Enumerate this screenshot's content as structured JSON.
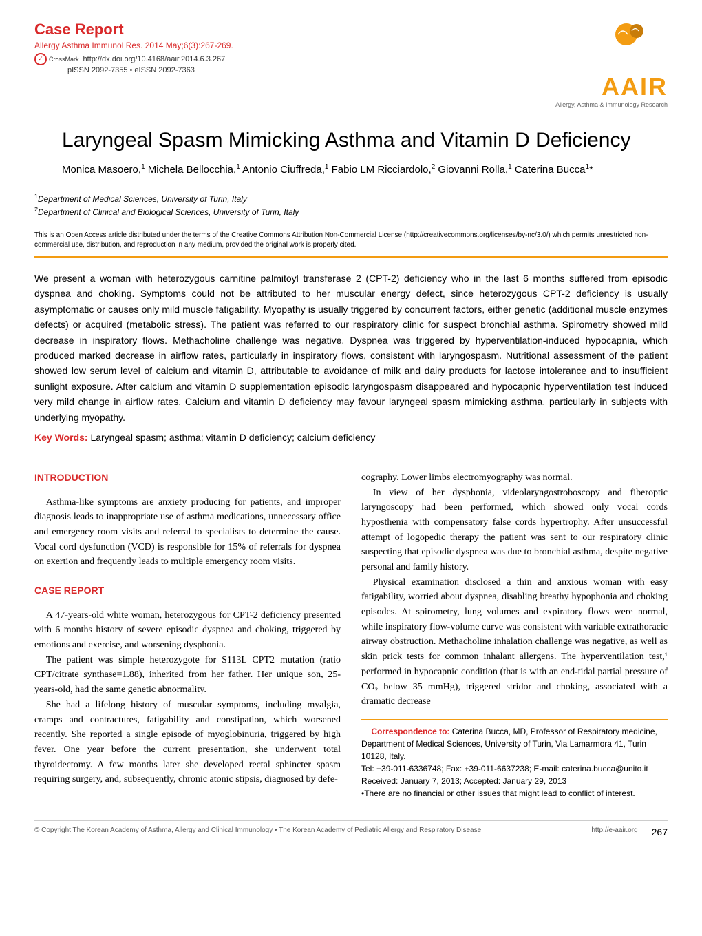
{
  "header": {
    "section_label": "Case Report",
    "journal_citation": "Allergy Asthma Immunol Res. 2014 May;6(3):267-269.",
    "doi": "http://dx.doi.org/10.4168/aair.2014.6.3.267",
    "crossmark_label": "CrossMark",
    "issn": "pISSN 2092-7355 • eISSN 2092-7363",
    "logo_text": "AAIR",
    "logo_sub": "Allergy, Asthma & Immunology Research"
  },
  "title": "Laryngeal Spasm Mimicking Asthma and Vitamin D Deficiency",
  "authors_html": "Monica Masoero,<sup>1</sup> Michela Bellocchia,<sup>1</sup> Antonio Ciuffreda,<sup>1</sup> Fabio LM Ricciardolo,<sup>2</sup> Giovanni Rolla,<sup>1</sup> Caterina Bucca<sup>1</sup>*",
  "affiliations": {
    "a1": "Department of Medical Sciences, University of Turin, Italy",
    "a2": "Department of Clinical and Biological Sciences, University of Turin, Italy"
  },
  "license": "This is an Open Access article distributed under the terms of the Creative Commons Attribution Non-Commercial License (http://creativecommons.org/licenses/by-nc/3.0/) which permits unrestricted non-commercial use, distribution, and reproduction in any medium, provided the original work is properly cited.",
  "abstract": "We present a woman with heterozygous carnitine palmitoyl transferase 2 (CPT-2) deficiency who in the last 6 months suffered from episodic dyspnea and choking. Symptoms could not be attributed to her muscular energy defect, since heterozygous CPT-2 deficiency is usually asymptomatic or causes only mild muscle fatigability. Myopathy is usually triggered by concurrent factors, either genetic (additional muscle enzymes defects) or acquired (metabolic stress). The patient was referred to our respiratory clinic for suspect bronchial asthma. Spirometry showed mild decrease in inspiratory flows. Methacholine challenge was negative. Dyspnea was triggered by hyperventilation-induced hypocapnia, which produced marked decrease in airflow rates, particularly in inspiratory flows, consistent with laryngospasm. Nutritional assessment of the patient showed low serum level of calcium and vitamin D, attributable to avoidance of milk and dairy products for lactose intolerance and to insufficient sunlight exposure. After calcium and vitamin D supplementation episodic laryngospasm disappeared and hypocapnic hyperventilation test induced very mild change in airflow rates. Calcium and vitamin D deficiency may favour laryngeal spasm mimicking asthma, particularly in subjects with underlying myopathy.",
  "keywords_label": "Key Words:",
  "keywords": "Laryngeal spasm; asthma; vitamin D deficiency; calcium deficiency",
  "sections": {
    "intro_heading": "INTRODUCTION",
    "intro_p1": "Asthma-like symptoms are anxiety producing for patients, and improper diagnosis leads to inappropriate use of asthma medications, unnecessary office and emergency room visits and referral to specialists to determine the cause. Vocal cord dysfunction (VCD) is responsible for 15% of referrals for dyspnea on exertion and frequently leads to multiple emergency room visits.",
    "case_heading": "CASE REPORT",
    "case_p1": "A 47-years-old white woman, heterozygous for CPT-2 deficiency presented with 6 months history of severe episodic dyspnea and choking, triggered by emotions and exercise, and worsening dysphonia.",
    "case_p2": "The patient was simple heterozygote for S113L CPT2 mutation (ratio CPT/citrate synthase=1.88), inherited from her father. Her unique son, 25-years-old, had the same genetic abnormality.",
    "case_p3": "She had a lifelong history of muscular symptoms, including myalgia, cramps and contractures, fatigability and constipation, which worsened recently. She reported a single episode of myoglobinuria, triggered by high fever. One year before the current presentation, she underwent total thyroidectomy. A few months later she developed rectal sphincter spasm requiring surgery, and, subsequently, chronic atonic stipsis, diagnosed by defe-",
    "col2_p1": "cography. Lower limbs electromyography was normal.",
    "col2_p2": "In view of her dysphonia, videolaryngostroboscopy and fiberoptic laryngoscopy had been performed, which showed only vocal cords hyposthenia with compensatory false cords hypertrophy. After unsuccessful attempt of logopedic therapy the patient was sent to our respiratory clinic suspecting that episodic dyspnea was due to bronchial asthma, despite negative personal and family history.",
    "col2_p3": "Physical examination disclosed a thin and anxious woman with easy fatigability, worried about dyspnea, disabling breathy hypophonia and choking episodes. At spirometry, lung volumes and expiratory flows were normal, while inspiratory flow-volume curve was consistent with variable extrathoracic airway obstruction. Methacholine inhalation challenge was negative, as well as skin prick tests for common inhalant allergens. The hyperventilation test,¹ performed in hypocapnic condition (that is with an end-tidal partial pressure of CO₂ below 35 mmHg), triggered stridor and choking, associated with a dramatic decrease"
  },
  "correspondence": {
    "label": "Correspondence to:",
    "text": "Caterina Bucca, MD, Professor of Respiratory medicine, Department of Medical Sciences, University of Turin, Via Lamarmora 41, Turin 10128, Italy.",
    "contact": "Tel: +39-011-6336748; Fax: +39-011-6637238; E-mail: caterina.bucca@unito.it",
    "received": "Received: January 7, 2013; Accepted: January 29, 2013",
    "conflict": "•There are no financial or other issues that might lead to conflict of interest."
  },
  "footer": {
    "copyright": "© Copyright The Korean Academy of Asthma, Allergy and Clinical Immunology • The Korean Academy of Pediatric Allergy and Respiratory Disease",
    "url": "http://e-aair.org",
    "page": "267"
  },
  "colors": {
    "red": "#d9292a",
    "orange": "#f39c12"
  }
}
